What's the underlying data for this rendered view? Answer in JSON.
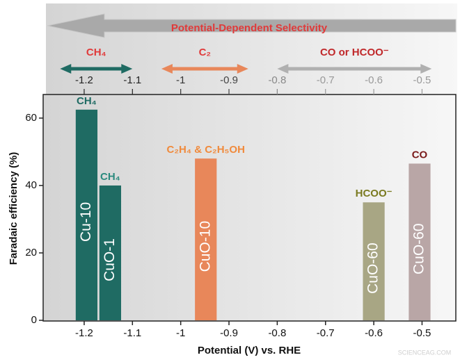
{
  "chart_data": {
    "type": "bar",
    "title": "Potential-Dependent Selectivity",
    "x_label": "Potential (V) vs. RHE",
    "y_label": "Faradaic efficiency (%)",
    "xlim": [
      -1.285,
      -0.43
    ],
    "xticks": [
      -1.2,
      -1.1,
      -1,
      -0.9,
      -0.8,
      -0.7,
      -0.6,
      -0.5
    ],
    "ylim": [
      0,
      67
    ],
    "yticks": [
      0,
      20,
      40,
      60
    ],
    "bar_width": 0.045,
    "bars": [
      {
        "name": "Cu-10",
        "product": "CH₄",
        "x": -1.195,
        "value": 62.5,
        "color": "#1f6b63",
        "label_color": "#1f6b63"
      },
      {
        "name": "CuO-1",
        "product": "CH₄",
        "x": -1.146,
        "value": 40,
        "color": "#1f6b63",
        "label_color": "#2b8a7e"
      },
      {
        "name": "CuO-10",
        "product": "C₂H₄ & C₂H₅OH",
        "x": -0.948,
        "value": 48,
        "color": "#e8875a",
        "label_color": "#f08a3c"
      },
      {
        "name": "CuO-60",
        "product": "HCOO⁻",
        "x": -0.6,
        "value": 35,
        "color": "#a8a684",
        "label_color": "#7a7a20"
      },
      {
        "name": "CuO-60",
        "product": "CO",
        "x": -0.505,
        "value": 46.5,
        "color": "#b9a6a6",
        "label_color": "#7a1a1a"
      }
    ],
    "ranges": [
      {
        "label": "CH₄",
        "from": -1.25,
        "to": -1.1,
        "color": "#1f6b63"
      },
      {
        "label": "C₂",
        "from": -1.04,
        "to": -0.86,
        "color": "#e8875a"
      },
      {
        "label": "CO or HCOO⁻",
        "from": -0.8,
        "to": -0.48,
        "color": "#b0b0b0"
      }
    ],
    "watermark": "SCIENCEAG.COM"
  }
}
